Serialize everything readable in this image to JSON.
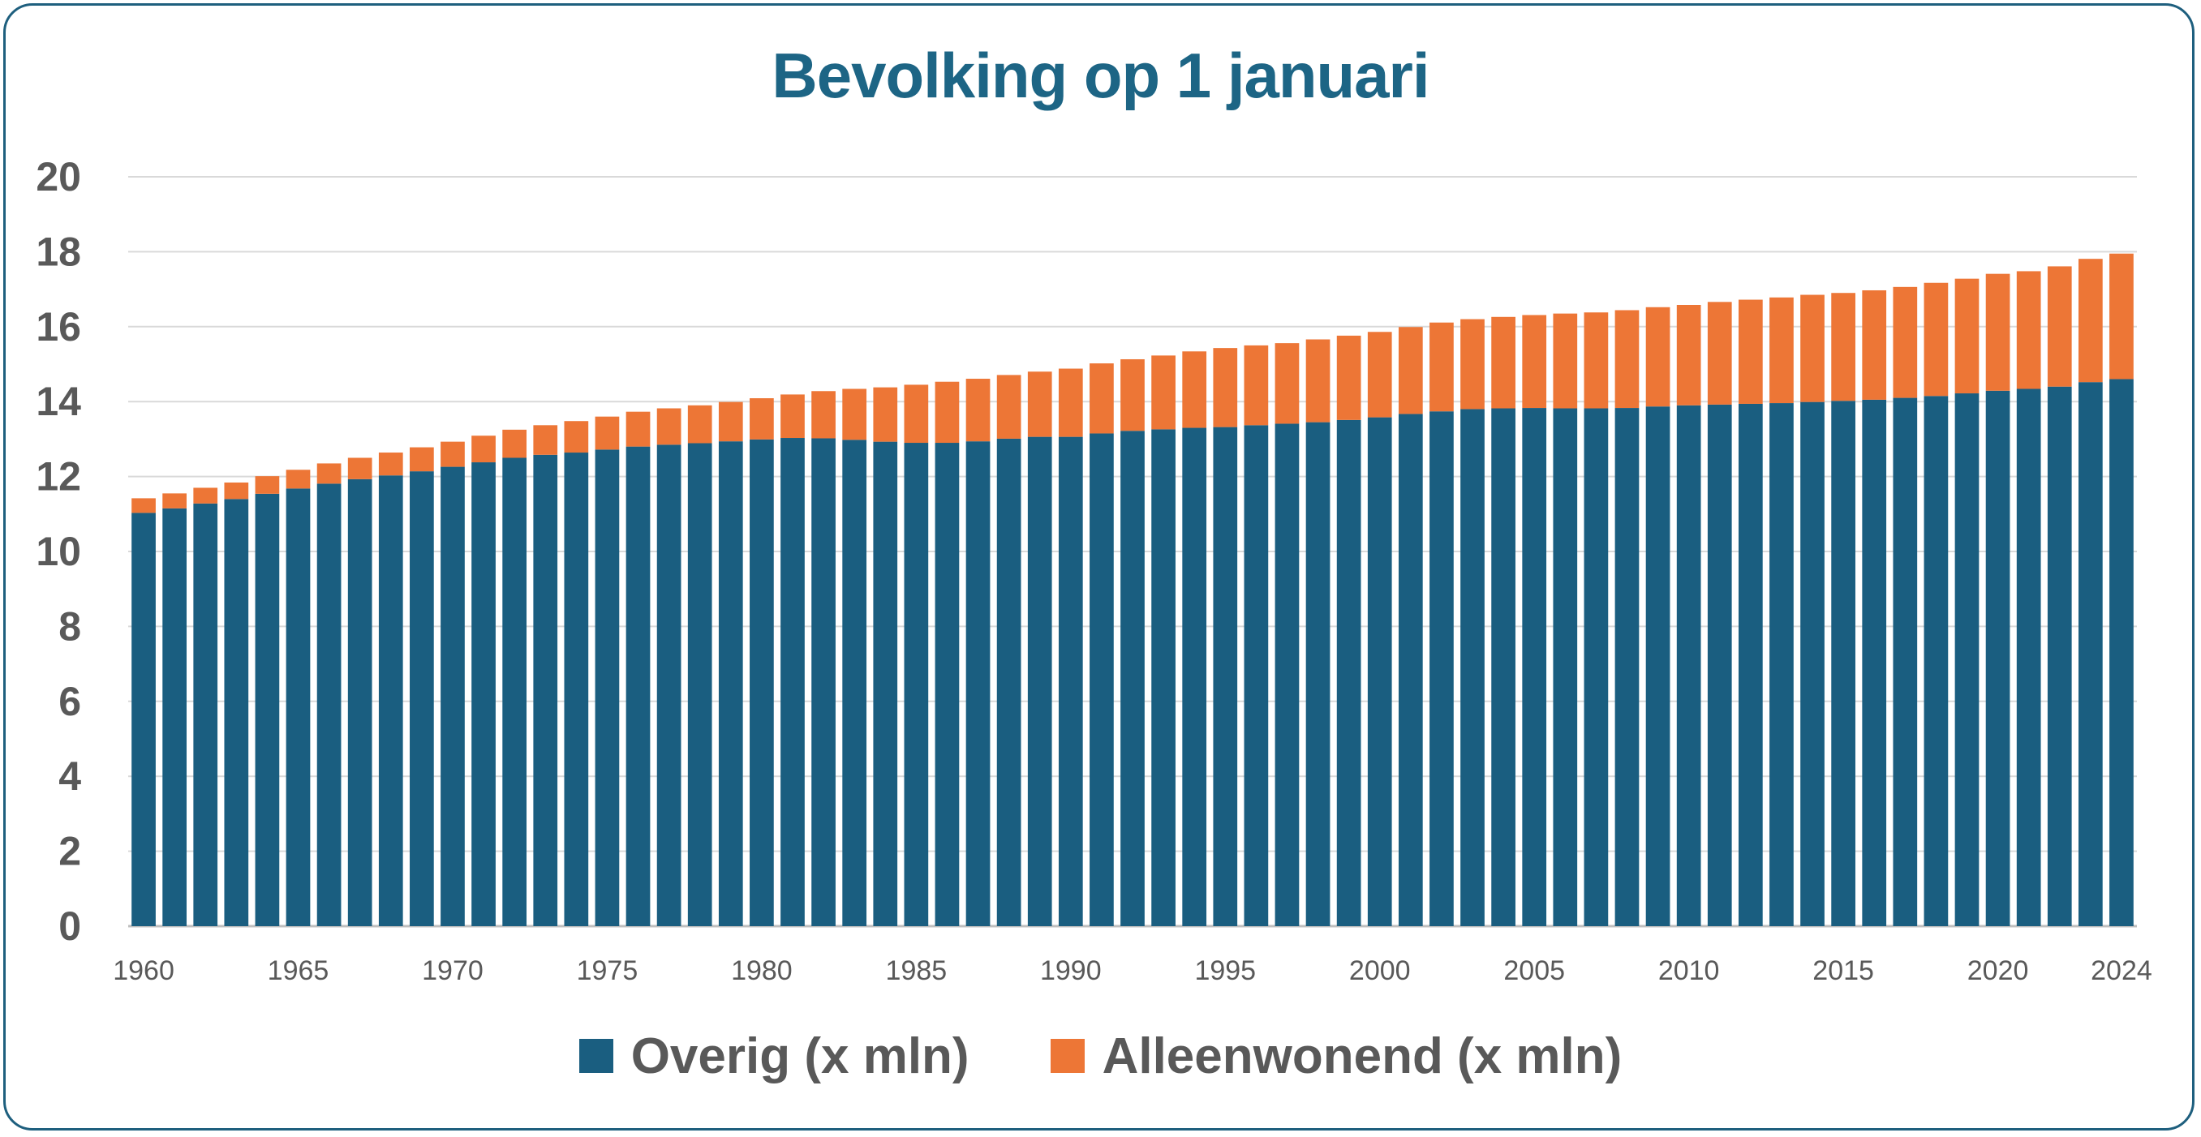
{
  "chart_data": {
    "type": "bar",
    "stacked": true,
    "title": "Bevolking op 1 januari",
    "xlabel": "",
    "ylabel": "",
    "ylim": [
      0,
      20
    ],
    "yticks": [
      "0",
      "2",
      "4",
      "6",
      "8",
      "10",
      "12",
      "14",
      "16",
      "18",
      "20"
    ],
    "xtick_labels": [
      "1960",
      "1965",
      "1970",
      "1975",
      "1980",
      "1985",
      "1990",
      "1995",
      "2000",
      "2005",
      "2010",
      "2015",
      "2020",
      "2024"
    ],
    "grid": true,
    "legend_position": "bottom",
    "categories": [
      1960,
      1961,
      1962,
      1963,
      1964,
      1965,
      1966,
      1967,
      1968,
      1969,
      1970,
      1971,
      1972,
      1973,
      1974,
      1975,
      1976,
      1977,
      1978,
      1979,
      1980,
      1981,
      1982,
      1983,
      1984,
      1985,
      1986,
      1987,
      1988,
      1989,
      1990,
      1991,
      1992,
      1993,
      1994,
      1995,
      1996,
      1997,
      1998,
      1999,
      2000,
      2001,
      2002,
      2003,
      2004,
      2005,
      2006,
      2007,
      2008,
      2009,
      2010,
      2011,
      2012,
      2013,
      2014,
      2015,
      2016,
      2017,
      2018,
      2019,
      2020,
      2021,
      2022,
      2023,
      2024
    ],
    "series": [
      {
        "name": "Overig (x mln)",
        "color": "#1a5e80",
        "values": [
          11.03,
          11.15,
          11.28,
          11.4,
          11.54,
          11.68,
          11.81,
          11.93,
          12.03,
          12.14,
          12.26,
          12.38,
          12.5,
          12.58,
          12.64,
          12.72,
          12.8,
          12.85,
          12.89,
          12.94,
          12.99,
          13.03,
          13.02,
          12.98,
          12.93,
          12.9,
          12.9,
          12.94,
          13.01,
          13.06,
          13.06,
          13.15,
          13.22,
          13.26,
          13.3,
          13.32,
          13.37,
          13.41,
          13.45,
          13.51,
          13.58,
          13.67,
          13.74,
          13.8,
          13.82,
          13.83,
          13.82,
          13.82,
          13.83,
          13.87,
          13.9,
          13.92,
          13.94,
          13.96,
          13.99,
          14.02,
          14.05,
          14.1,
          14.15,
          14.22,
          14.29,
          14.34,
          14.4,
          14.52,
          14.6
        ]
      },
      {
        "name": "Alleenwonend (x mln)",
        "color": "#ed7636",
        "values": [
          0.39,
          0.4,
          0.42,
          0.44,
          0.47,
          0.5,
          0.54,
          0.57,
          0.61,
          0.64,
          0.67,
          0.71,
          0.75,
          0.79,
          0.84,
          0.88,
          0.93,
          0.97,
          1.01,
          1.05,
          1.1,
          1.16,
          1.26,
          1.36,
          1.45,
          1.55,
          1.63,
          1.67,
          1.7,
          1.74,
          1.82,
          1.87,
          1.91,
          1.97,
          2.04,
          2.11,
          2.13,
          2.15,
          2.21,
          2.25,
          2.28,
          2.32,
          2.37,
          2.4,
          2.44,
          2.48,
          2.53,
          2.56,
          2.61,
          2.65,
          2.68,
          2.74,
          2.78,
          2.82,
          2.86,
          2.88,
          2.92,
          2.96,
          3.02,
          3.06,
          3.12,
          3.14,
          3.21,
          3.29,
          3.35
        ]
      }
    ]
  }
}
